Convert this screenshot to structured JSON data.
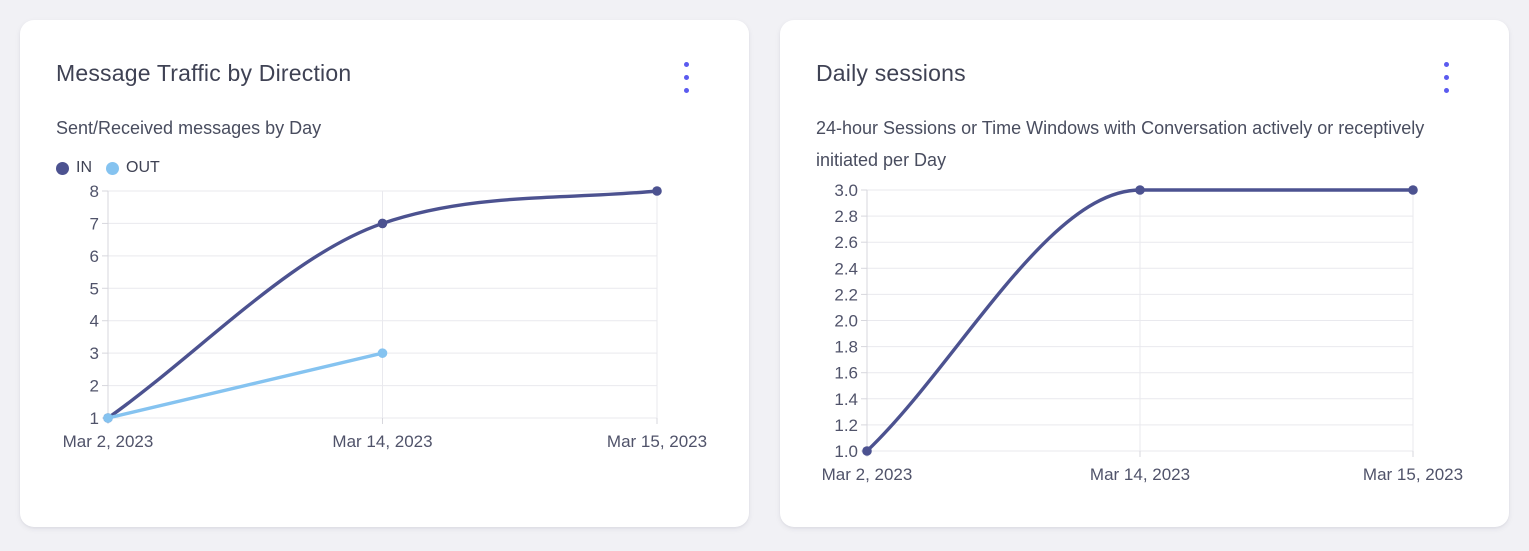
{
  "page": {
    "background": "#f1f1f5",
    "card_background": "#ffffff",
    "accent_color": "#5b5bef",
    "menu_icon": "kebab-menu-icon"
  },
  "chart_data": [
    {
      "type": "line",
      "title": "Message Traffic by Direction",
      "subtitle": "Sent/Received messages by Day",
      "xlabel": "",
      "ylabel": "",
      "categories": [
        "Mar 2, 2023",
        "Mar 14, 2023",
        "Mar 15, 2023"
      ],
      "series": [
        {
          "name": "IN",
          "color": "#4c5290",
          "values": [
            1,
            7,
            8
          ]
        },
        {
          "name": "OUT",
          "color": "#85c3f0",
          "values": [
            1,
            3,
            null
          ]
        }
      ],
      "ylim": [
        1,
        8
      ],
      "yticks": [
        {
          "value": 1,
          "label": "1"
        },
        {
          "value": 2,
          "label": "2"
        },
        {
          "value": 3,
          "label": "3"
        },
        {
          "value": 4,
          "label": "4"
        },
        {
          "value": 5,
          "label": "5"
        },
        {
          "value": 6,
          "label": "6"
        },
        {
          "value": 7,
          "label": "7"
        },
        {
          "value": 8,
          "label": "8"
        }
      ],
      "grid": true,
      "legend_position": "top-left",
      "curve": "monotone"
    },
    {
      "type": "line",
      "title": "Daily sessions",
      "subtitle": "24-hour Sessions or Time Windows with Conversation actively or receptively initiated per Day",
      "xlabel": "",
      "ylabel": "",
      "categories": [
        "Mar 2, 2023",
        "Mar 14, 2023",
        "Mar 15, 2023"
      ],
      "series": [
        {
          "color": "#4c5290",
          "values": [
            1.0,
            3.0,
            3.0
          ]
        }
      ],
      "ylim": [
        1.0,
        3.0
      ],
      "yticks": [
        {
          "value": 1.0,
          "label": "1.0"
        },
        {
          "value": 1.2,
          "label": "1.2"
        },
        {
          "value": 1.4,
          "label": "1.4"
        },
        {
          "value": 1.6,
          "label": "1.6"
        },
        {
          "value": 1.8,
          "label": "1.8"
        },
        {
          "value": 2.0,
          "label": "2.0"
        },
        {
          "value": 2.2,
          "label": "2.2"
        },
        {
          "value": 2.4,
          "label": "2.4"
        },
        {
          "value": 2.6,
          "label": "2.6"
        },
        {
          "value": 2.8,
          "label": "2.8"
        },
        {
          "value": 3.0,
          "label": "3.0"
        }
      ],
      "grid": true,
      "legend_position": "none",
      "curve": "monotone"
    }
  ]
}
